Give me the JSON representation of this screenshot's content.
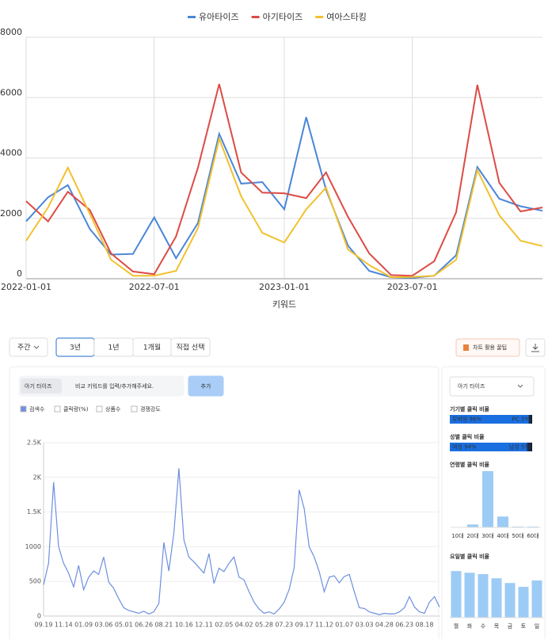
{
  "chart_data": [
    {
      "type": "line",
      "x": [
        "2022-01-01",
        "2022-02-01",
        "2022-03-01",
        "2022-04-01",
        "2022-05-01",
        "2022-06-01",
        "2022-07-01",
        "2022-08-01",
        "2022-09-01",
        "2022-10-01",
        "2022-11-01",
        "2022-12-01",
        "2023-01-01",
        "2023-02-01",
        "2023-03-01",
        "2023-04-01",
        "2023-05-01",
        "2023-06-01",
        "2023-07-01",
        "2023-08-01",
        "2023-09-01",
        "2023-10-01",
        "2023-11-01",
        "2023-12-01",
        "2024-01-01"
      ],
      "xlim": [
        "2022-01-01",
        "2024-01-01"
      ],
      "xticks": [
        "2022-01-01",
        "2022-07-01",
        "2023-01-01",
        "2023-07-01"
      ],
      "ylim": [
        0,
        8000
      ],
      "yticks": [
        0,
        2000,
        4000,
        6000,
        8000
      ],
      "x_label": "키워드",
      "grid": true,
      "legend": "top",
      "series": [
        {
          "name": "유아타이즈",
          "color": "#4a86d8",
          "values": [
            1900,
            2700,
            3100,
            1650,
            800,
            820,
            2030,
            680,
            1850,
            4800,
            3150,
            3200,
            2300,
            5350,
            2950,
            1100,
            260,
            50,
            30,
            100,
            780,
            3700,
            2650,
            2400,
            2250
          ]
        },
        {
          "name": "아기타이즈",
          "color": "#dd4b45",
          "values": [
            2570,
            1900,
            2880,
            2280,
            840,
            240,
            150,
            1400,
            3680,
            6450,
            3520,
            2850,
            2830,
            2670,
            3520,
            2050,
            840,
            120,
            100,
            580,
            2200,
            6420,
            3180,
            2230,
            2360
          ]
        },
        {
          "name": "여아스타킹",
          "color": "#f2c12e",
          "values": [
            1260,
            2360,
            3680,
            2150,
            630,
            100,
            100,
            260,
            1680,
            4640,
            2730,
            1520,
            1200,
            2300,
            3020,
            970,
            450,
            50,
            60,
            100,
            630,
            3600,
            2100,
            1260,
            1080
          ]
        }
      ]
    },
    {
      "type": "line",
      "categories": [
        "09.19",
        null,
        null,
        null,
        "11.14",
        null,
        null,
        null,
        "01.09",
        null,
        null,
        null,
        "03.06",
        null,
        null,
        null,
        "05.01",
        null,
        null,
        null,
        "06.26",
        null,
        null,
        null,
        "08.21",
        null,
        null,
        null,
        "10.16",
        null,
        null,
        null,
        "12.11",
        null,
        null,
        null,
        "02.05",
        null,
        null,
        null,
        "04.02",
        null,
        null,
        null,
        "05.28",
        null,
        null,
        null,
        "07.23",
        null,
        null,
        null,
        "09.17",
        null,
        null,
        null,
        "11.12",
        null,
        null,
        null,
        "01.07",
        null,
        null,
        null,
        "03.03",
        null,
        null,
        null,
        "04.28",
        null,
        null,
        null,
        "06.23",
        null,
        null,
        null,
        "08.18",
        null,
        null,
        null
      ],
      "ylim": [
        0,
        2500
      ],
      "yticks": [
        0,
        500,
        1000,
        {
          "value": 1500,
          "label": "1.5K"
        },
        {
          "value": 2000,
          "label": "2K"
        },
        {
          "value": 2500,
          "label": "2.5K"
        }
      ],
      "grid": true,
      "series": [
        {
          "color": "#6d8fe0",
          "values": [
            450,
            760,
            1930,
            1000,
            760,
            620,
            420,
            730,
            380,
            560,
            650,
            600,
            850,
            490,
            400,
            250,
            120,
            80,
            60,
            40,
            70,
            30,
            60,
            180,
            1060,
            650,
            1200,
            2130,
            1100,
            850,
            780,
            700,
            620,
            900,
            470,
            690,
            640,
            760,
            850,
            560,
            520,
            350,
            200,
            100,
            40,
            60,
            30,
            100,
            200,
            380,
            700,
            1820,
            1550,
            1000,
            850,
            640,
            350,
            560,
            580,
            480,
            570,
            600,
            350,
            120,
            110,
            60,
            40,
            20,
            40,
            30,
            30,
            60,
            120,
            280,
            130,
            60,
            40,
            200,
            280,
            130
          ]
        }
      ]
    },
    {
      "type": "stacked_bar",
      "title": "기기별 클릭 비율",
      "values": [
        96,
        3
      ],
      "value_labels": [
        "모바일 96%",
        "PC 3%"
      ],
      "colors": [
        "#1a6fe0",
        "#1b2a4a"
      ]
    },
    {
      "type": "stacked_bar",
      "title": "성별 클릭 비율",
      "values": [
        94,
        5
      ],
      "value_labels": [
        "여성 94%",
        "남성 5%"
      ],
      "colors": [
        "#1a6fe0",
        "#1b2a4a"
      ]
    },
    {
      "type": "bar",
      "title": "연령별 클릭 비율",
      "categories": [
        "10대",
        "20대",
        "30대",
        "40대",
        "50대",
        "60대"
      ],
      "values": [
        0,
        4,
        78,
        15,
        1,
        1
      ],
      "color": "#9ccbf5"
    },
    {
      "type": "bar",
      "title": "요일별 클릭 비율",
      "categories": [
        "월",
        "화",
        "수",
        "목",
        "금",
        "토",
        "일"
      ],
      "values": [
        16.8,
        16.2,
        15.7,
        14.2,
        12.5,
        11.1,
        13.4
      ],
      "color": "#9ccbf5"
    }
  ],
  "ui": {
    "period_select": "주간",
    "ranges": [
      "3년",
      "1년",
      "1개월",
      "직접 선택"
    ],
    "tip_button": "차트 활용 꿀팁",
    "keyword_chip": "아기 타이즈",
    "input_placeholder": "비교 키워드를 입력/추가해주세요.",
    "add_button": "추가",
    "metrics": [
      "검색수",
      "클릭량(%)",
      "상품수",
      "경쟁강도"
    ],
    "keyword_select": "아기 타이즈"
  }
}
